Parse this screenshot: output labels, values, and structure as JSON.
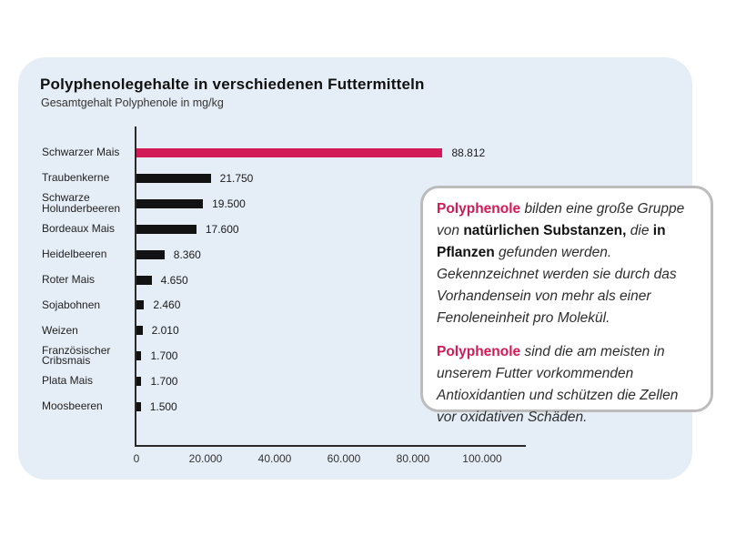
{
  "card": {
    "background": "#e5eef6"
  },
  "chart_data": {
    "type": "bar",
    "orientation": "horizontal",
    "title": "Polyphenolegehalte in verschiedenen Futtermitteln",
    "subtitle": "Gesamtgehalt Polyphenole in mg/kg",
    "categories": [
      [
        "Schwarzer Mais"
      ],
      [
        "Traubenkerne"
      ],
      [
        "Schwarze",
        "Holunderbeeren"
      ],
      [
        "Bordeaux Mais"
      ],
      [
        "Heidelbeeren"
      ],
      [
        "Roter Mais"
      ],
      [
        "Sojabohnen"
      ],
      [
        "Weizen"
      ],
      [
        "Französischer",
        "Cribsmais"
      ],
      [
        "Plata Mais"
      ],
      [
        "Moosbeeren"
      ]
    ],
    "values": [
      88812,
      21750,
      19500,
      17600,
      8360,
      4650,
      2460,
      2010,
      1700,
      1700,
      1500
    ],
    "value_labels": [
      "88.812",
      "21.750",
      "19.500",
      "17.600",
      "8.360",
      "4.650",
      "2.460",
      "2.010",
      "1.700",
      "1.700",
      "1.500"
    ],
    "highlight_index": 0,
    "bar_color_highlight": "#d21a56",
    "bar_color_default": "#121212",
    "xlim": [
      0,
      100000
    ],
    "x_tick_values": [
      0,
      20000,
      40000,
      60000,
      80000,
      100000
    ],
    "x_tick_labels": [
      "0",
      "20.000",
      "40.000",
      "60.000",
      "80.000",
      "100.000"
    ],
    "grid": false,
    "legend": "none"
  },
  "text_box": {
    "accent_color": "#d21a56",
    "paragraphs": [
      {
        "segments": [
          {
            "text": "Polyphenole",
            "style": "accent"
          },
          {
            "text": " bilden eine große Gruppe von ",
            "style": "italic"
          },
          {
            "text": "natürlichen Substanzen,",
            "style": "bold"
          },
          {
            "text": " die ",
            "style": "italic"
          },
          {
            "text": "in Pflanzen",
            "style": "bold"
          },
          {
            "text": " gefunden werden. Gekennzeichnet werden sie durch das Vorhandensein von mehr als einer Fenoleneinheit pro Molekül.",
            "style": "italic"
          }
        ]
      },
      {
        "segments": [
          {
            "text": "Polyphenole",
            "style": "accent"
          },
          {
            "text": " sind die am meisten in unserem Futter vorkommenden Antioxidantien und schützen die Zellen vor oxidativen Schäden.",
            "style": "italic"
          }
        ]
      }
    ]
  }
}
